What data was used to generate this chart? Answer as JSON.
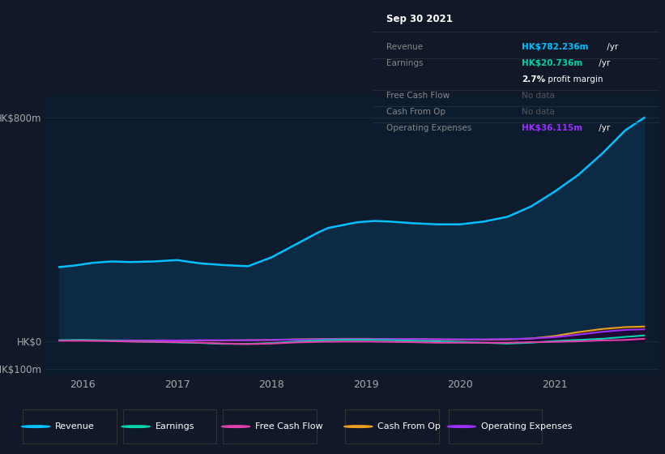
{
  "bg_color": "#111827",
  "plot_bg_color": "#0d1b2e",
  "xlim": [
    2015.6,
    2022.1
  ],
  "ylim_main": [
    -120,
    880
  ],
  "ytick_values": [
    800,
    0,
    -100
  ],
  "ytick_labels": [
    "HK$800m",
    "HK$0",
    "-HK$100m"
  ],
  "x_years": [
    2016,
    2017,
    2018,
    2019,
    2020,
    2021
  ],
  "revenue_x": [
    2015.75,
    2015.9,
    2016.1,
    2016.3,
    2016.5,
    2016.75,
    2017.0,
    2017.1,
    2017.25,
    2017.5,
    2017.75,
    2018.0,
    2018.25,
    2018.5,
    2018.6,
    2018.75,
    2018.9,
    2019.0,
    2019.1,
    2019.25,
    2019.5,
    2019.75,
    2020.0,
    2020.25,
    2020.5,
    2020.75,
    2021.0,
    2021.25,
    2021.5,
    2021.75,
    2021.95
  ],
  "revenue_y": [
    265,
    270,
    280,
    285,
    283,
    285,
    290,
    285,
    278,
    272,
    268,
    300,
    345,
    390,
    405,
    415,
    425,
    428,
    430,
    428,
    422,
    418,
    418,
    428,
    445,
    482,
    535,
    595,
    670,
    755,
    800
  ],
  "earnings_x": [
    2015.75,
    2016.0,
    2016.25,
    2016.5,
    2016.75,
    2017.0,
    2017.25,
    2017.5,
    2017.75,
    2018.0,
    2018.25,
    2018.5,
    2018.75,
    2019.0,
    2019.25,
    2019.5,
    2019.75,
    2020.0,
    2020.25,
    2020.5,
    2020.75,
    2021.0,
    2021.25,
    2021.5,
    2021.75,
    2021.95
  ],
  "earnings_y": [
    3,
    4,
    2,
    -1,
    -3,
    -5,
    -7,
    -10,
    -10,
    -7,
    -2,
    2,
    4,
    4,
    3,
    1,
    -1,
    -3,
    -6,
    -9,
    -6,
    0,
    4,
    8,
    15,
    20
  ],
  "fcf_x": [
    2015.75,
    2016.0,
    2016.25,
    2016.5,
    2016.75,
    2017.0,
    2017.25,
    2017.5,
    2017.75,
    2018.0,
    2018.25,
    2018.5,
    2018.75,
    2019.0,
    2019.25,
    2019.5,
    2019.75,
    2020.0,
    2020.25,
    2020.5,
    2020.75,
    2021.0,
    2021.25,
    2021.5,
    2021.75,
    2021.95
  ],
  "fcf_y": [
    1,
    1,
    0,
    -2,
    -3,
    -4,
    -6,
    -9,
    -11,
    -9,
    -5,
    -3,
    -2,
    -2,
    -3,
    -4,
    -6,
    -6,
    -6,
    -6,
    -4,
    -3,
    -1,
    2,
    4,
    8
  ],
  "cfo_x": [
    2015.75,
    2016.0,
    2016.25,
    2016.5,
    2016.75,
    2017.0,
    2017.25,
    2017.5,
    2017.75,
    2018.0,
    2018.25,
    2018.5,
    2018.75,
    2019.0,
    2019.25,
    2019.5,
    2019.75,
    2020.0,
    2020.25,
    2020.5,
    2020.75,
    2021.0,
    2021.25,
    2021.5,
    2021.75,
    2021.95
  ],
  "cfo_y": [
    2,
    2,
    2,
    2,
    2,
    2,
    2,
    2,
    3,
    4,
    6,
    7,
    8,
    8,
    7,
    7,
    6,
    5,
    5,
    6,
    9,
    18,
    32,
    43,
    50,
    52
  ],
  "ope_x": [
    2015.75,
    2016.0,
    2016.25,
    2016.5,
    2016.75,
    2017.0,
    2017.25,
    2017.5,
    2017.75,
    2018.0,
    2018.25,
    2018.5,
    2018.75,
    2019.0,
    2019.25,
    2019.5,
    2019.75,
    2020.0,
    2020.25,
    2020.5,
    2020.75,
    2021.0,
    2021.25,
    2021.5,
    2021.75,
    2021.95
  ],
  "ope_y": [
    2,
    2,
    2,
    2,
    2,
    2,
    3,
    3,
    3,
    4,
    5,
    6,
    7,
    7,
    7,
    7,
    6,
    6,
    6,
    7,
    9,
    14,
    23,
    33,
    40,
    42
  ],
  "rev_color": "#00bfff",
  "rev_fill": "#0d2a45",
  "earn_color": "#00d4aa",
  "fcf_color": "#e040ab",
  "cfo_color": "#e8a020",
  "cfo_fill": "#2a1f08",
  "ope_color": "#9b30ff",
  "ope_fill": "#1e0a35",
  "grid_color": "#1e2d3d",
  "tick_color": "#aaaaaa",
  "legend_items": [
    {
      "label": "Revenue",
      "color": "#00bfff"
    },
    {
      "label": "Earnings",
      "color": "#00d4aa"
    },
    {
      "label": "Free Cash Flow",
      "color": "#e040ab"
    },
    {
      "label": "Cash From Op",
      "color": "#e8a020"
    },
    {
      "label": "Operating Expenses",
      "color": "#9b30ff"
    }
  ],
  "table_title": "Sep 30 2021",
  "table_rows": [
    {
      "label": "Revenue",
      "value": "HK$782.236m",
      "suffix": " /yr",
      "extra": null,
      "val_color": "#00bfff"
    },
    {
      "label": "Earnings",
      "value": "HK$20.736m",
      "suffix": " /yr",
      "extra": "2.7% profit margin",
      "val_color": "#00d4aa"
    },
    {
      "label": "Free Cash Flow",
      "value": "No data",
      "suffix": "",
      "extra": null,
      "val_color": "#666666"
    },
    {
      "label": "Cash From Op",
      "value": "No data",
      "suffix": "",
      "extra": null,
      "val_color": "#666666"
    },
    {
      "label": "Operating Expenses",
      "value": "HK$36.115m",
      "suffix": " /yr",
      "extra": null,
      "val_color": "#9b30ff"
    }
  ]
}
